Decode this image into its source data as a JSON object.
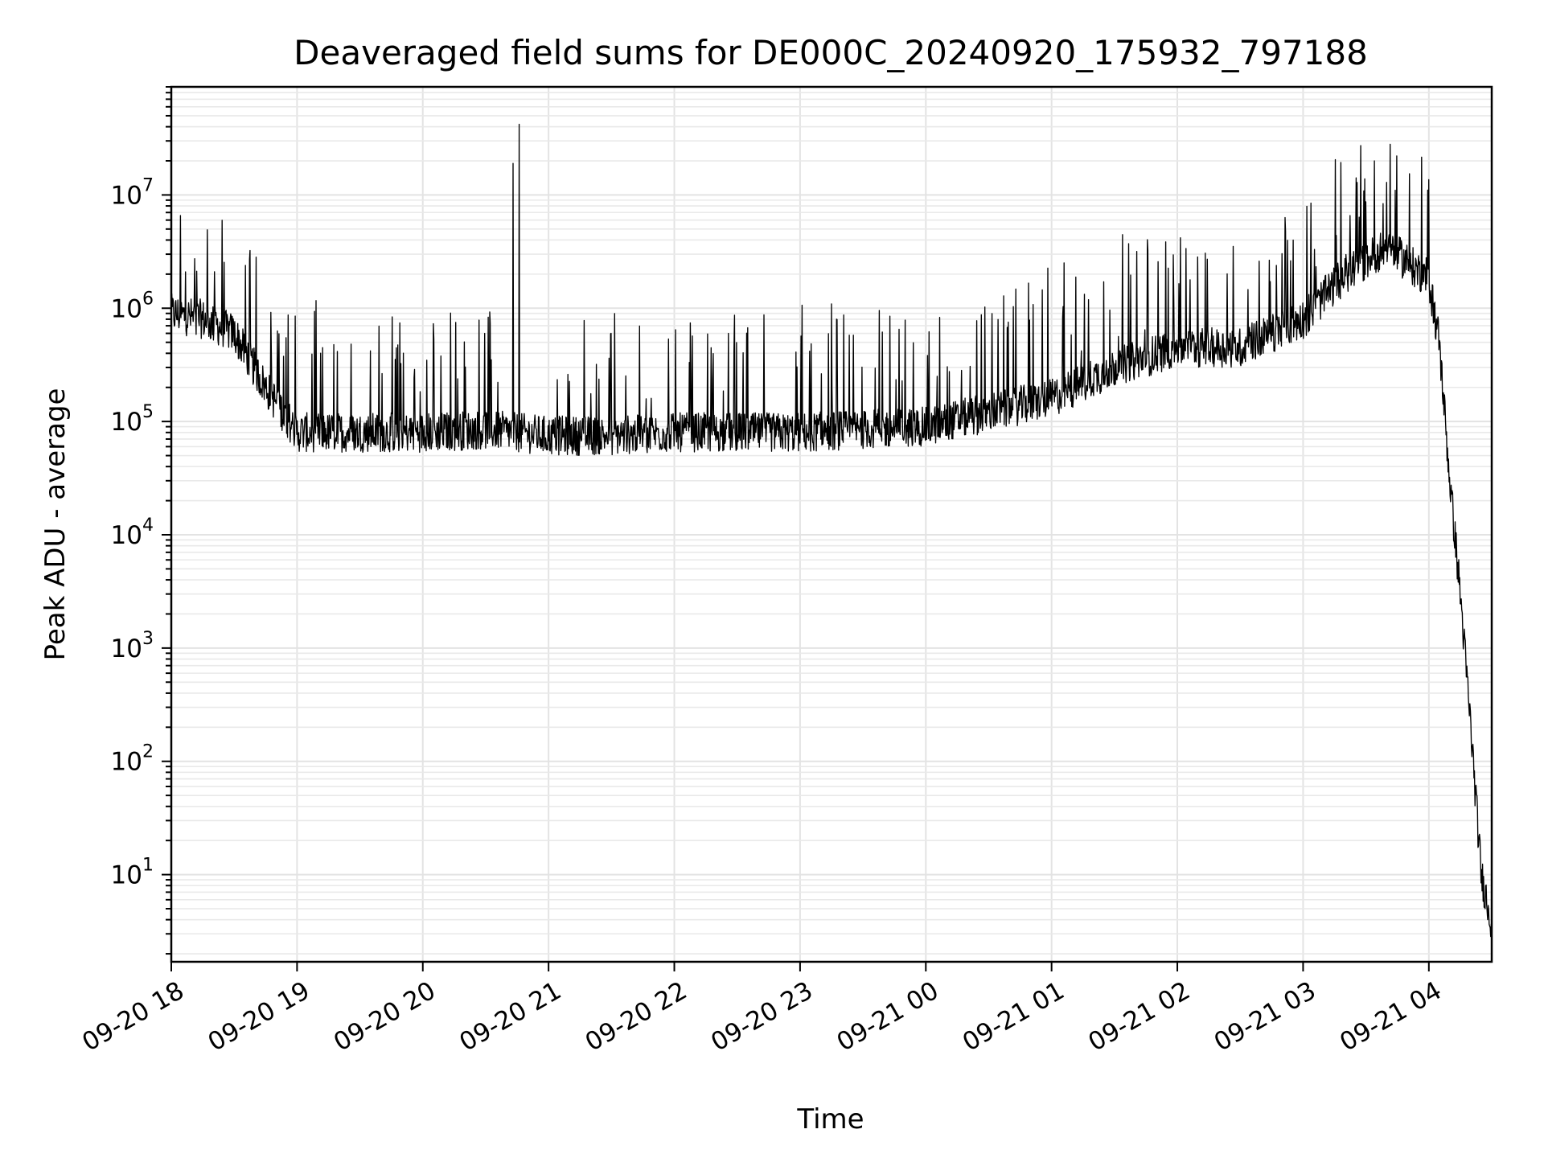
{
  "chart_data": {
    "type": "line",
    "title": "Deaveraged field sums for DE000C_20240920_175932_797188",
    "xlabel": "Time",
    "ylabel": "Peak ADU - average",
    "x_scale": "time",
    "y_scale": "log",
    "xlim": [
      "2024-09-20 18:00",
      "2024-09-21 04:30"
    ],
    "ylim": [
      1.7,
      90000000
    ],
    "x_ticks": [
      "09-20 18",
      "09-20 19",
      "09-20 20",
      "09-20 21",
      "09-20 22",
      "09-20 23",
      "09-21 00",
      "09-21 01",
      "09-21 02",
      "09-21 03",
      "09-21 04"
    ],
    "y_ticks": [
      {
        "base": "10",
        "exp": "1"
      },
      {
        "base": "10",
        "exp": "2"
      },
      {
        "base": "10",
        "exp": "3"
      },
      {
        "base": "10",
        "exp": "4"
      },
      {
        "base": "10",
        "exp": "5"
      },
      {
        "base": "10",
        "exp": "6"
      },
      {
        "base": "10",
        "exp": "7"
      }
    ],
    "grid": true,
    "legend": "none",
    "series_color": "#000000",
    "series": [
      {
        "x": [
          "2024-09-20 18:00",
          "2024-09-20 18:15",
          "2024-09-20 18:30",
          "2024-09-20 18:45",
          "2024-09-20 19:00",
          "2024-09-20 19:30",
          "2024-09-20 20:00",
          "2024-09-20 20:30",
          "2024-09-20 20:45",
          "2024-09-20 21:00",
          "2024-09-20 21:30",
          "2024-09-20 22:00",
          "2024-09-20 22:30",
          "2024-09-20 23:00",
          "2024-09-20 23:30",
          "2024-09-21 00:00",
          "2024-09-21 00:30",
          "2024-09-21 01:00",
          "2024-09-21 01:30",
          "2024-09-21 02:00",
          "2024-09-21 02:30",
          "2024-09-21 03:00",
          "2024-09-21 03:20",
          "2024-09-21 03:40",
          "2024-09-21 04:00",
          "2024-09-21 04:05",
          "2024-09-21 04:10",
          "2024-09-21 04:15",
          "2024-09-21 04:20",
          "2024-09-21 04:25",
          "2024-09-21 04:30"
        ],
        "y": [
          900000,
          800000,
          600000,
          200000,
          80000,
          80000,
          80000,
          85000,
          80000,
          75000,
          75000,
          80000,
          80000,
          80000,
          85000,
          90000,
          120000,
          160000,
          300000,
          450000,
          450000,
          800000,
          2000000,
          3500000,
          1800000,
          500000,
          30000,
          3000,
          200,
          10,
          3.8
        ],
        "peaks": [
          {
            "x": "2024-09-20 20:43",
            "y": 19000000
          },
          {
            "x": "2024-09-20 20:46",
            "y": 42000000
          },
          {
            "x": "2024-09-21 03:44",
            "y": 11000000
          }
        ]
      }
    ]
  }
}
